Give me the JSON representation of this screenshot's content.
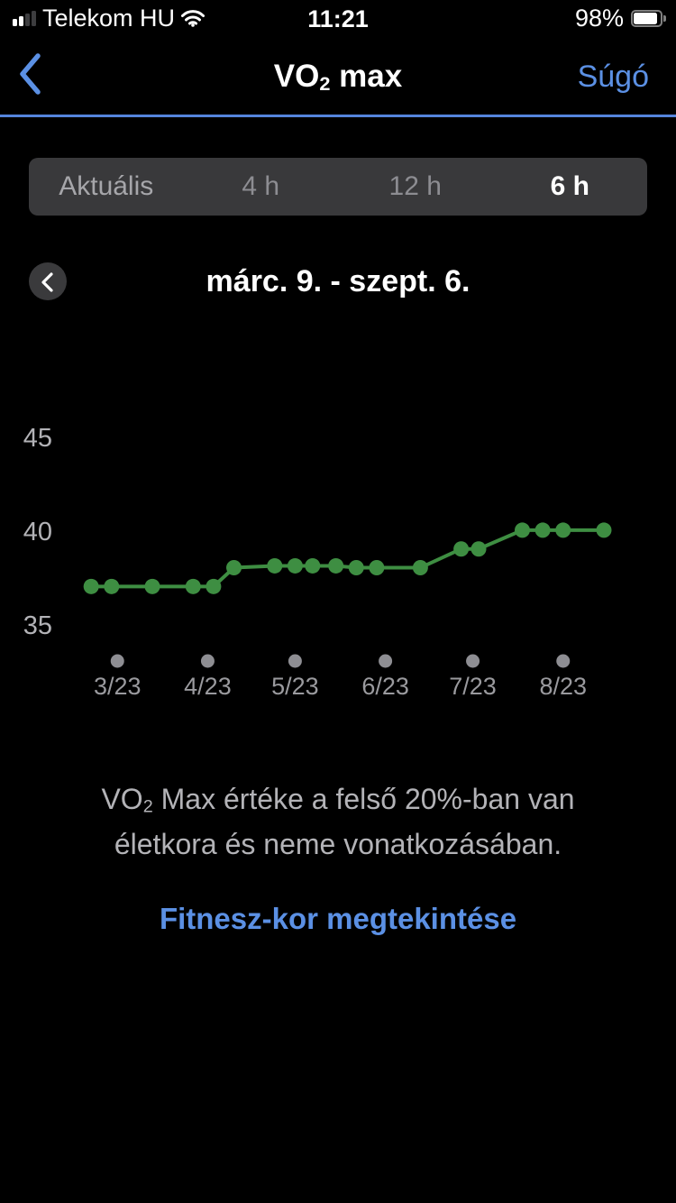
{
  "status_bar": {
    "signal_icon": "cellular-signal-2-of-4-bars",
    "carrier": "Telekom HU",
    "wifi_icon": "wifi-full",
    "time": "11:21",
    "battery_percent": "98%",
    "battery_icon": "battery-nearly-full"
  },
  "nav": {
    "back_icon": "chevron-left",
    "title": {
      "pre": "VO",
      "sub": "2",
      "post": " max"
    },
    "help_label": "Súgó"
  },
  "tabs": {
    "items": [
      {
        "label": "Aktuális",
        "selected": false
      },
      {
        "label": "4 h",
        "selected": false
      },
      {
        "label": "12 h",
        "selected": false
      },
      {
        "label": "6 h",
        "selected": true
      }
    ]
  },
  "range_header": {
    "back_icon": "chevron-left-circle",
    "label": "márc. 9. - szept. 6."
  },
  "chart_data": {
    "type": "line",
    "title": "VO2 max trend",
    "x_unit": "days_from_range_start",
    "x_range_days": [
      0,
      181
    ],
    "x_ticks": [
      {
        "day": 14,
        "label": "3/23"
      },
      {
        "day": 45,
        "label": "4/23"
      },
      {
        "day": 75,
        "label": "5/23"
      },
      {
        "day": 106,
        "label": "6/23"
      },
      {
        "day": 136,
        "label": "7/23"
      },
      {
        "day": 167,
        "label": "8/23"
      }
    ],
    "y_ticks": [
      35,
      40,
      45
    ],
    "ylim": [
      33,
      47
    ],
    "grid": false,
    "legend": "none",
    "series": [
      {
        "name": "VO2 max",
        "points": [
          [
            5,
            37.1
          ],
          [
            12,
            37.1
          ],
          [
            26,
            37.1
          ],
          [
            40,
            37.1
          ],
          [
            47,
            37.1
          ],
          [
            54,
            38.1
          ],
          [
            68,
            38.2
          ],
          [
            75,
            38.2
          ],
          [
            81,
            38.2
          ],
          [
            89,
            38.2
          ],
          [
            96,
            38.1
          ],
          [
            103,
            38.1
          ],
          [
            118,
            38.1
          ],
          [
            132,
            39.1
          ],
          [
            138,
            39.1
          ],
          [
            153,
            40.1
          ],
          [
            160,
            40.1
          ],
          [
            167,
            40.1
          ],
          [
            181,
            40.1
          ]
        ]
      }
    ],
    "line_color": "#3e8e42",
    "point_color": "#3e8e42",
    "tick_dot_color": "#8e8e93",
    "y_label_color": "#b2b2b6",
    "x_label_color": "#9a9a9e"
  },
  "summary": {
    "pre": "VO",
    "sub": "2",
    "post": " Max értéke a felső 20%-ban van életkora és neme vonatkozásában."
  },
  "link": {
    "label": "Fitnesz-kor megtekintése"
  },
  "colors": {
    "accent_blue": "#5b90e4",
    "separator_blue": "#5585dd",
    "chart_green": "#3e8e42",
    "segment_bg": "#39393b"
  }
}
